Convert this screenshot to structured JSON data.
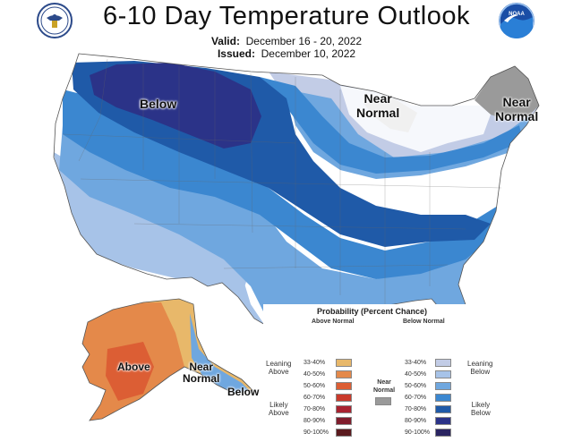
{
  "title": "6-10 Day Temperature Outlook",
  "valid_label": "Valid:",
  "valid_dates": "December 16 - 20, 2022",
  "issued_label": "Issued:",
  "issued_date": "December 10, 2022",
  "logos": {
    "left": "Department of Commerce seal",
    "right": "NOAA",
    "right_text": "NOAA"
  },
  "map_labels": {
    "below": "Below",
    "near_normal_mw": "Near\nNormal",
    "near_normal_ne": "Near\nNormal",
    "above": "Above",
    "near_normal_ak": "Near\nNormal",
    "below_ak": "Below"
  },
  "legend": {
    "title": "Probability (Percent Chance)",
    "above_header": "Above Normal",
    "below_header": "Below Normal",
    "near_normal": "Near\nNormal",
    "leaning_above": "Leaning\nAbove",
    "likely_above": "Likely\nAbove",
    "leaning_below": "Leaning\nBelow",
    "likely_below": "Likely\nBelow",
    "above_bins": [
      {
        "range": "33-40%",
        "color": "#e8b86a"
      },
      {
        "range": "40-50%",
        "color": "#e4894a"
      },
      {
        "range": "50-60%",
        "color": "#dc5e34"
      },
      {
        "range": "60-70%",
        "color": "#c93a2b"
      },
      {
        "range": "70-80%",
        "color": "#a82230"
      },
      {
        "range": "80-90%",
        "color": "#7f1d2c"
      },
      {
        "range": "90-100%",
        "color": "#5a1a1e"
      }
    ],
    "below_bins": [
      {
        "range": "33-40%",
        "color": "#c2cce6"
      },
      {
        "range": "40-50%",
        "color": "#a7c3e8"
      },
      {
        "range": "50-60%",
        "color": "#6fa7df"
      },
      {
        "range": "60-70%",
        "color": "#3b87d0"
      },
      {
        "range": "70-80%",
        "color": "#1f5aa8"
      },
      {
        "range": "80-90%",
        "color": "#2b3388"
      },
      {
        "range": "90-100%",
        "color": "#2a2461"
      }
    ],
    "near_color": "#9a9a9a"
  }
}
